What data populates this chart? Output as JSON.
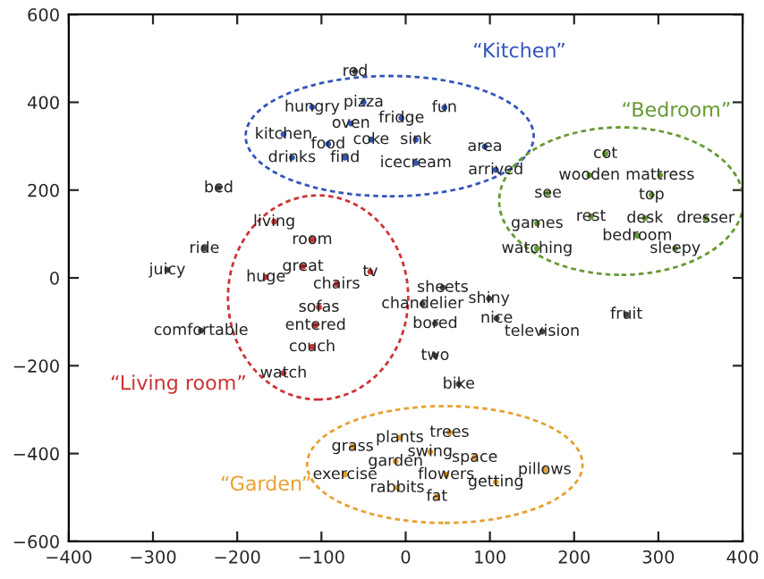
{
  "chart_data": {
    "type": "scatter",
    "marker": "circle",
    "xlim": [
      -400,
      400
    ],
    "xticks": [
      {
        "value": -400,
        "label": "−400"
      },
      {
        "value": -300,
        "label": "−300"
      },
      {
        "value": -200,
        "label": "−200"
      },
      {
        "value": -100,
        "label": "−100"
      },
      0,
      100,
      200,
      300,
      400
    ],
    "ylim": [
      -600,
      600
    ],
    "yticks": [
      {
        "value": -600,
        "label": "−600"
      },
      {
        "value": -400,
        "label": "−400"
      },
      {
        "value": -200,
        "label": "−200"
      },
      0,
      200,
      400,
      600
    ],
    "series": [
      {
        "name": "“Kitchen”",
        "color": "#3355bb",
        "x": [
          -111,
          -50,
          -5,
          46,
          -65,
          -145,
          -92,
          -41,
          12,
          94,
          -135,
          -72,
          12,
          107
        ],
        "values": [
          389,
          400,
          364,
          388,
          352,
          327,
          305,
          315,
          315,
          299,
          274,
          274,
          262,
          246
        ],
        "value_labels": [
          "hungry",
          "pizza",
          "fridge",
          "fun",
          "oven",
          "kitchen",
          "food",
          "coke",
          "sink",
          "area",
          "drinks",
          "find",
          "icecream",
          "arrived"
        ]
      },
      {
        "name": "“Bedroom”",
        "color": "#669933",
        "x": [
          237,
          218,
          302,
          169,
          292,
          220,
          284,
          356,
          275,
          320,
          156,
          156
        ],
        "values": [
          283,
          234,
          234,
          193,
          189,
          140,
          136,
          136,
          96,
          67,
          124,
          67
        ],
        "value_labels": [
          "cot",
          "wooden",
          "mattress",
          "see",
          "top",
          "rest",
          "desk",
          "dresser",
          "bedroom",
          "sleepy",
          "games",
          "watching"
        ]
      },
      {
        "name": "“Living room”",
        "color": "#cc3333",
        "x": [
          -156,
          -111,
          -122,
          -166,
          -82,
          -42,
          -103,
          -107,
          -111,
          -145
        ],
        "values": [
          128,
          87,
          26,
          2,
          -14,
          14,
          -67,
          -108,
          -157,
          -217
        ],
        "value_labels": [
          "living",
          "room",
          "great",
          "huge",
          "chairs",
          "tv",
          "sofas",
          "entered",
          "couch",
          "watch"
        ]
      },
      {
        "name": "“Garden”",
        "color": "#e8a030",
        "x": [
          -63,
          -7,
          52,
          29,
          82,
          -12,
          -72,
          48,
          165,
          -10,
          107,
          37
        ],
        "values": [
          -384,
          -364,
          -352,
          -396,
          -409,
          -418,
          -448,
          -448,
          -437,
          -478,
          -465,
          -498
        ],
        "value_labels": [
          "grass",
          "plants",
          "trees",
          "swing",
          "space",
          "garden",
          "exercise",
          "flowers",
          "pillows",
          "rabbits",
          "getting",
          "fat"
        ]
      },
      {
        "x": [
          -60,
          -222,
          -239,
          -283,
          -243,
          20,
          44,
          99,
          35,
          108,
          162,
          262,
          35,
          63
        ],
        "values": [
          470,
          205,
          67,
          18,
          -120,
          -59,
          -22,
          -47,
          -104,
          -92,
          -122,
          -83,
          -177,
          -242
        ],
        "value_labels": [
          "red",
          "bed",
          "ride",
          "juicy",
          "comfortable",
          "chandelier",
          "sheets",
          "shiny",
          "bored",
          "nice",
          "television",
          "fruit",
          "two",
          "bike"
        ]
      }
    ]
  }
}
